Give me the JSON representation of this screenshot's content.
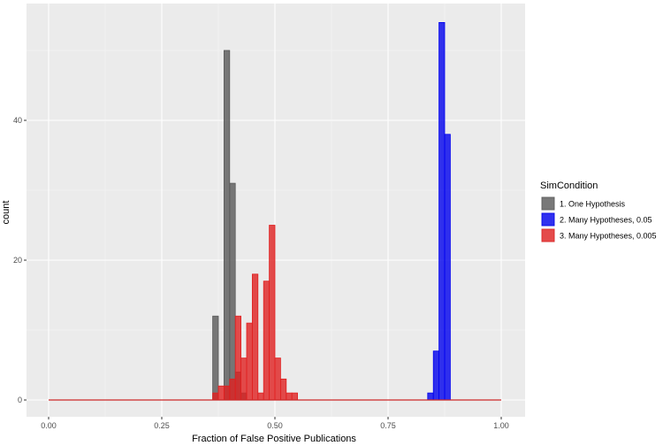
{
  "chart_data": {
    "type": "bar",
    "title": "",
    "xlabel": "Fraction of False Positive Publications",
    "ylabel": "count",
    "xlim": [
      0,
      1
    ],
    "ylim": [
      0,
      55
    ],
    "x_ticks": [
      0,
      0.25,
      0.5,
      0.75,
      1
    ],
    "x_tick_labels": [
      "0.00",
      "0.25",
      "0.50",
      "0.75",
      "1.00"
    ],
    "y_ticks": [
      0,
      20,
      40
    ],
    "y_tick_labels": [
      "0",
      "20",
      "40"
    ],
    "grid": true,
    "legend_position": "right",
    "bin_width": 0.0125,
    "legend": {
      "title": "SimCondition"
    },
    "series": [
      {
        "name": "1. One Hypothesis",
        "color": "#595959",
        "bins": [
          {
            "x0": 0.3625,
            "x1": 0.375,
            "count": 12
          },
          {
            "x0": 0.3875,
            "x1": 0.4,
            "count": 50
          },
          {
            "x0": 0.4,
            "x1": 0.4125,
            "count": 31
          },
          {
            "x0": 0.4125,
            "x1": 0.425,
            "count": 4
          },
          {
            "x0": 0.425,
            "x1": 0.4375,
            "count": 1
          }
        ]
      },
      {
        "name": "2. Many Hypotheses, 0.05",
        "color": "#0000ee",
        "bins": [
          {
            "x0": 0.8375,
            "x1": 0.85,
            "count": 1
          },
          {
            "x0": 0.85,
            "x1": 0.8625,
            "count": 7
          },
          {
            "x0": 0.8625,
            "x1": 0.875,
            "count": 54
          },
          {
            "x0": 0.875,
            "x1": 0.8875,
            "count": 38
          }
        ]
      },
      {
        "name": "3. Many Hypotheses, 0.005",
        "color": "#e02020",
        "bins": [
          {
            "x0": 0.3625,
            "x1": 0.375,
            "count": 1
          },
          {
            "x0": 0.375,
            "x1": 0.3875,
            "count": 2
          },
          {
            "x0": 0.3875,
            "x1": 0.4,
            "count": 2
          },
          {
            "x0": 0.4,
            "x1": 0.4125,
            "count": 3
          },
          {
            "x0": 0.4125,
            "x1": 0.425,
            "count": 12
          },
          {
            "x0": 0.425,
            "x1": 0.4375,
            "count": 6
          },
          {
            "x0": 0.4375,
            "x1": 0.45,
            "count": 11
          },
          {
            "x0": 0.45,
            "x1": 0.4625,
            "count": 18
          },
          {
            "x0": 0.4625,
            "x1": 0.475,
            "count": 1
          },
          {
            "x0": 0.475,
            "x1": 0.4875,
            "count": 17
          },
          {
            "x0": 0.4875,
            "x1": 0.5,
            "count": 25
          },
          {
            "x0": 0.5,
            "x1": 0.5125,
            "count": 6
          },
          {
            "x0": 0.5125,
            "x1": 0.525,
            "count": 3
          },
          {
            "x0": 0.525,
            "x1": 0.5375,
            "count": 1
          },
          {
            "x0": 0.5375,
            "x1": 0.55,
            "count": 1
          }
        ]
      }
    ]
  }
}
